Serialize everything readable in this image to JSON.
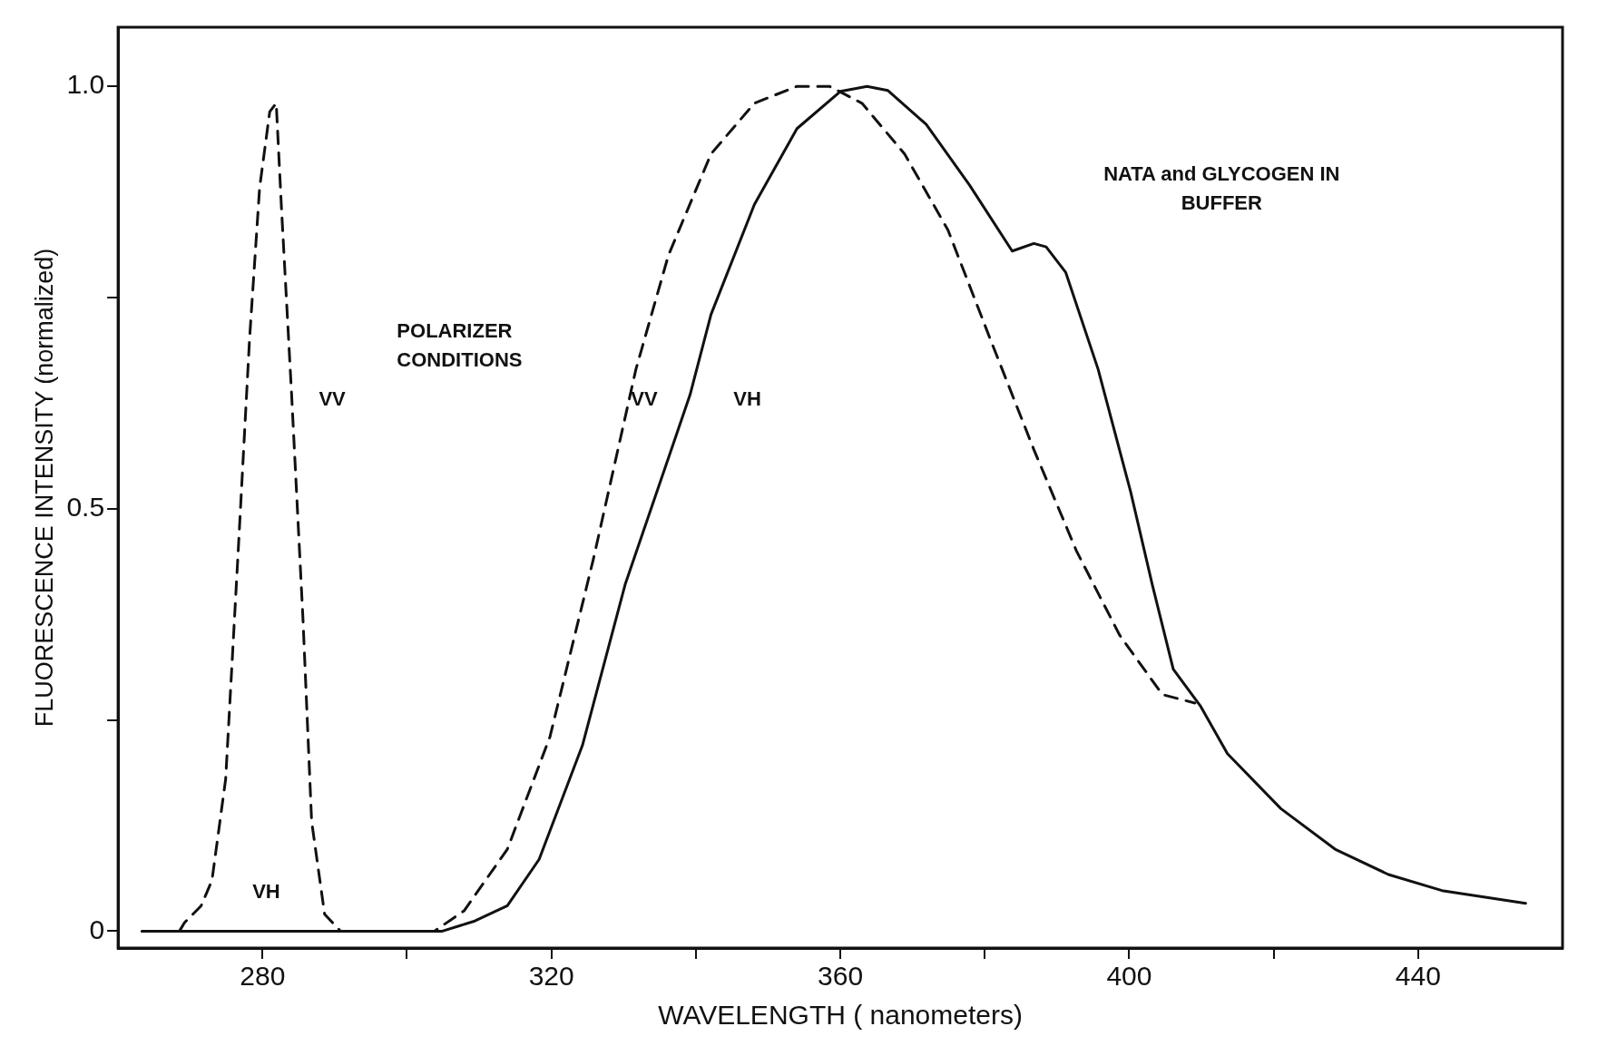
{
  "chart_data": {
    "type": "line",
    "xlabel": "WAVELENGTH ( nanometers)",
    "ylabel": "FLUORESCENCE INTENSITY (normalized)",
    "xlim": [
      260,
      460
    ],
    "ylim": [
      -0.02,
      1.07
    ],
    "xticks": [
      280,
      {
        "value": 300,
        "label": null
      },
      320,
      {
        "value": 340,
        "label": null
      },
      360,
      {
        "value": 380,
        "label": null
      },
      400,
      {
        "value": 420,
        "label": null
      },
      440
    ],
    "yticks": [
      0,
      {
        "value": 0.25,
        "label": null
      },
      0.5,
      {
        "value": 0.75,
        "label": null
      },
      {
        "value": 1,
        "label": "1.0"
      }
    ],
    "grid": false,
    "legend": false,
    "marker": "none",
    "series": [
      {
        "color": "#111111",
        "line_style": "dashed",
        "x": [
          268.5,
          269.2,
          271.5,
          273,
          274.9,
          276.7,
          278.2,
          279.6,
          281,
          281.9,
          282.6,
          284,
          285.6,
          286.8,
          288.6,
          290.8,
          303.8,
          307.9,
          313.9,
          319.8,
          325.8,
          331.7,
          336.2,
          342.1,
          348.1,
          354,
          358.5,
          363,
          368.9,
          374.9,
          380.8,
          386.8,
          392.7,
          398.7,
          404.6,
          409.1
        ],
        "values": [
          0,
          0.01,
          0.03,
          0.06,
          0.18,
          0.46,
          0.7,
          0.88,
          0.97,
          0.98,
          0.86,
          0.64,
          0.37,
          0.13,
          0.02,
          0,
          0,
          0.024,
          0.097,
          0.23,
          0.44,
          0.665,
          0.8,
          0.92,
          0.98,
          1,
          1,
          0.98,
          0.92,
          0.83,
          0.7,
          0.57,
          0.45,
          0.35,
          0.28,
          0.27
        ]
      },
      {
        "color": "#111111",
        "line_style": "solid",
        "x": [
          263.3,
          304.9,
          309.4,
          313.9,
          318.3,
          324.3,
          330.2,
          336.2,
          339.2,
          342.1,
          348.1,
          354,
          360,
          363.7,
          366.6,
          371.9,
          377.9,
          383.8,
          386.8,
          388.5,
          391.2,
          395.7,
          400.2,
          403.2,
          406.1,
          409.9,
          413.6,
          421,
          428.5,
          435.9,
          443.3,
          454.9
        ],
        "values": [
          0,
          0,
          0.012,
          0.03,
          0.085,
          0.22,
          0.41,
          0.56,
          0.635,
          0.73,
          0.86,
          0.95,
          0.994,
          1,
          0.995,
          0.955,
          0.883,
          0.805,
          0.814,
          0.81,
          0.78,
          0.665,
          0.52,
          0.41,
          0.31,
          0.266,
          0.21,
          0.145,
          0.097,
          0.067,
          0.048,
          0.033
        ]
      }
    ],
    "annotations": [
      "POLARIZER CONDITIONS",
      "NATA and GLYCOGEN IN BUFFER",
      "VV",
      "VH",
      "VV",
      "VH"
    ]
  }
}
